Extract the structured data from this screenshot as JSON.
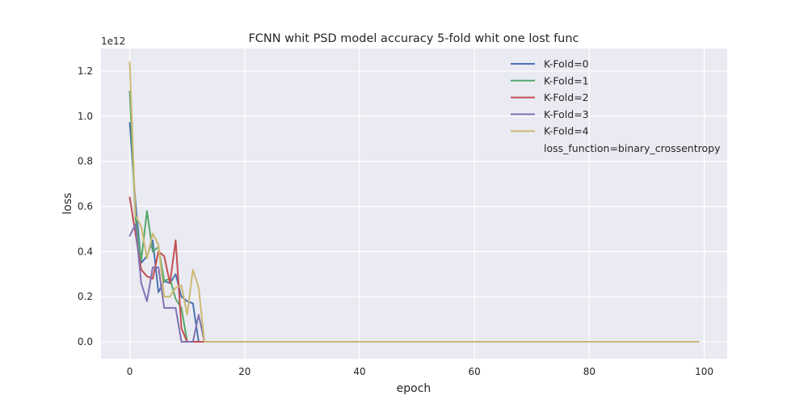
{
  "chart_data": {
    "type": "line",
    "title": "FCNN whit PSD model accuracy 5-fold whit one lost func",
    "xlabel": "epoch",
    "ylabel": "loss",
    "offset_text": "1e12",
    "xlim": [
      -5,
      104
    ],
    "ylim": [
      -0.075,
      1.3
    ],
    "x_ticks": [
      0,
      20,
      40,
      60,
      80,
      100
    ],
    "y_ticks": [
      0.0,
      0.2,
      0.4,
      0.6,
      0.8,
      1.0,
      1.2
    ],
    "y_tick_labels": [
      "0.0",
      "0.2",
      "0.4",
      "0.6",
      "0.8",
      "1.0",
      "1.2"
    ],
    "grid": true,
    "legend_position": "top-right",
    "x_last": 99,
    "legend_extra": "loss_function=binary_crossentropy",
    "series": [
      {
        "name": "K-Fold=0",
        "color": "#4C72B0",
        "values": [
          0.97,
          0.62,
          0.35,
          0.38,
          0.45,
          0.22,
          0.27,
          0.26,
          0.3,
          0.2,
          0.18,
          0.17,
          0.0
        ]
      },
      {
        "name": "K-Fold=1",
        "color": "#55A868",
        "values": [
          1.11,
          0.55,
          0.36,
          0.58,
          0.4,
          0.42,
          0.27,
          0.28,
          0.19,
          0.15,
          0.0
        ]
      },
      {
        "name": "K-Fold=2",
        "color": "#C44E52",
        "values": [
          0.64,
          0.48,
          0.32,
          0.29,
          0.28,
          0.4,
          0.38,
          0.26,
          0.45,
          0.06,
          0.0
        ]
      },
      {
        "name": "K-Fold=3",
        "color": "#8172B2",
        "values": [
          0.47,
          0.52,
          0.26,
          0.18,
          0.33,
          0.33,
          0.15,
          0.15,
          0.15,
          0.0,
          0.0,
          0.0,
          0.12,
          0.0
        ]
      },
      {
        "name": "K-Fold=4",
        "color": "#CCB974",
        "values": [
          1.24,
          0.56,
          0.51,
          0.37,
          0.48,
          0.43,
          0.2,
          0.2,
          0.24,
          0.25,
          0.12,
          0.32,
          0.24,
          0.0
        ]
      }
    ]
  }
}
